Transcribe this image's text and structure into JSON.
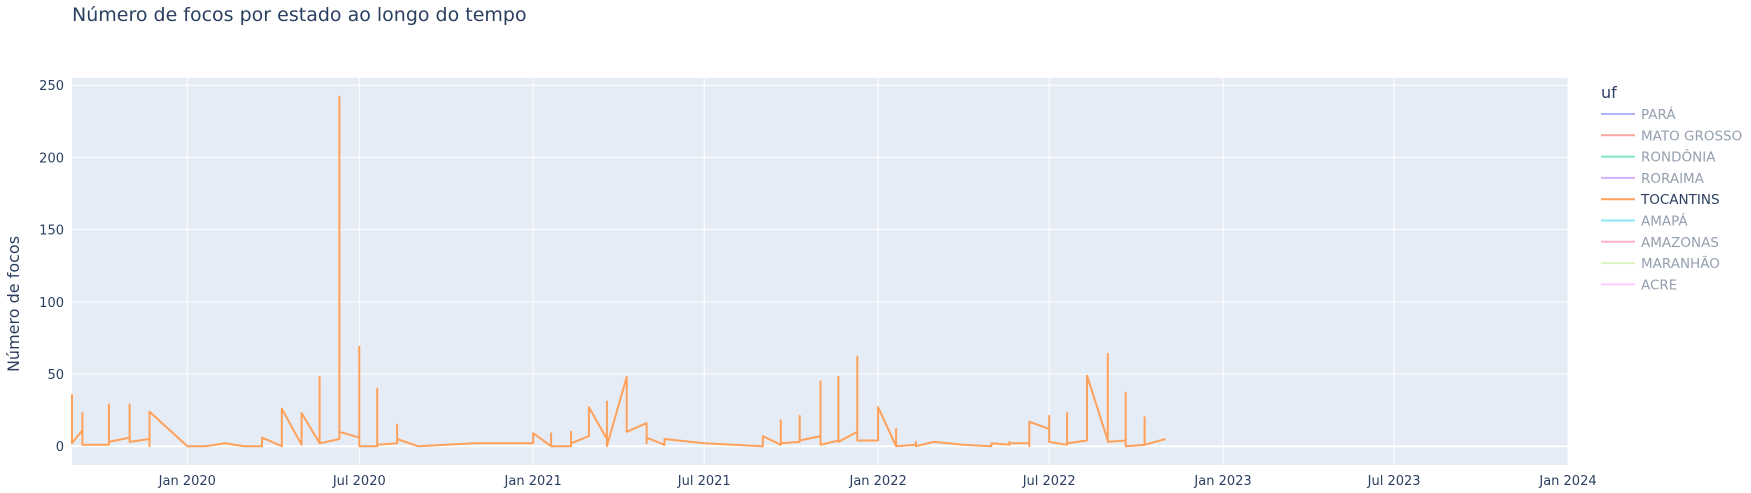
{
  "chart_data": {
    "type": "line",
    "title": "Número de focos por estado ao longo do tempo",
    "xlabel": "",
    "ylabel": "Número de focos",
    "x_axis_type": "date",
    "xlim": [
      "2019-09-01",
      "2024-01-01"
    ],
    "ylim": [
      -13,
      255
    ],
    "x_ticks": [
      {
        "date": "2020-01-01",
        "label": "Jan 2020"
      },
      {
        "date": "2020-07-01",
        "label": "Jul 2020"
      },
      {
        "date": "2021-01-01",
        "label": "Jan 2021"
      },
      {
        "date": "2021-07-01",
        "label": "Jul 2021"
      },
      {
        "date": "2022-01-01",
        "label": "Jan 2022"
      },
      {
        "date": "2022-07-01",
        "label": "Jul 2022"
      },
      {
        "date": "2023-01-01",
        "label": "Jan 2023"
      },
      {
        "date": "2023-07-01",
        "label": "Jul 2023"
      },
      {
        "date": "2024-01-01",
        "label": "Jan 2024"
      }
    ],
    "y_ticks": [
      0,
      50,
      100,
      150,
      200,
      250
    ],
    "grid": true,
    "plot_background": "#e5ecf6",
    "legend": {
      "title": "uf",
      "placement": "right",
      "items": [
        {
          "name": "PARÁ",
          "color": "#636efa",
          "visible": false
        },
        {
          "name": "MATO GROSSO",
          "color": "#ef553b",
          "visible": false
        },
        {
          "name": "RONDÔNIA",
          "color": "#00cc96",
          "visible": false
        },
        {
          "name": "RORAIMA",
          "color": "#ab63fa",
          "visible": false
        },
        {
          "name": "TOCANTINS",
          "color": "#ffa15a",
          "visible": true
        },
        {
          "name": "AMAPÁ",
          "color": "#19d3f3",
          "visible": false
        },
        {
          "name": "AMAZONAS",
          "color": "#ff6692",
          "visible": false
        },
        {
          "name": "MARANHÃO",
          "color": "#b6e880",
          "visible": false
        },
        {
          "name": "ACRE",
          "color": "#ff97ff",
          "visible": false
        }
      ]
    },
    "series": [
      {
        "name": "TOCANTINS",
        "color": "#ffa15a",
        "points": [
          [
            "2019-09-01",
            36
          ],
          [
            "2019-09-01",
            2
          ],
          [
            "2019-09-12",
            11
          ],
          [
            "2019-09-12",
            23
          ],
          [
            "2019-09-12",
            1
          ],
          [
            "2019-10-01",
            1
          ],
          [
            "2019-10-10",
            1
          ],
          [
            "2019-10-10",
            29
          ],
          [
            "2019-10-10",
            3
          ],
          [
            "2019-11-01",
            6
          ],
          [
            "2019-11-01",
            29
          ],
          [
            "2019-11-01",
            3
          ],
          [
            "2019-11-22",
            5
          ],
          [
            "2019-11-22",
            0
          ],
          [
            "2019-11-22",
            24
          ],
          [
            "2020-01-01",
            0
          ],
          [
            "2020-01-20",
            0
          ],
          [
            "2020-02-10",
            2
          ],
          [
            "2020-03-01",
            0
          ],
          [
            "2020-03-20",
            0
          ],
          [
            "2020-03-20",
            6
          ],
          [
            "2020-04-10",
            0
          ],
          [
            "2020-04-10",
            26
          ],
          [
            "2020-05-01",
            1
          ],
          [
            "2020-05-01",
            23
          ],
          [
            "2020-05-20",
            2
          ],
          [
            "2020-05-20",
            48
          ],
          [
            "2020-05-20",
            2
          ],
          [
            "2020-06-10",
            5
          ],
          [
            "2020-06-10",
            242
          ],
          [
            "2020-06-10",
            10
          ],
          [
            "2020-07-01",
            6
          ],
          [
            "2020-07-01",
            69
          ],
          [
            "2020-07-01",
            0
          ],
          [
            "2020-07-20",
            0
          ],
          [
            "2020-07-20",
            40
          ],
          [
            "2020-07-20",
            1
          ],
          [
            "2020-08-10",
            2
          ],
          [
            "2020-08-10",
            15
          ],
          [
            "2020-08-10",
            5
          ],
          [
            "2020-09-01",
            0
          ],
          [
            "2020-10-01",
            1
          ],
          [
            "2020-11-01",
            2
          ],
          [
            "2020-12-01",
            2
          ],
          [
            "2021-01-01",
            2
          ],
          [
            "2021-01-01",
            9
          ],
          [
            "2021-01-20",
            0
          ],
          [
            "2021-01-20",
            9
          ],
          [
            "2021-01-20",
            0
          ],
          [
            "2021-02-10",
            0
          ],
          [
            "2021-02-10",
            10
          ],
          [
            "2021-02-10",
            2
          ],
          [
            "2021-03-01",
            7
          ],
          [
            "2021-03-01",
            27
          ],
          [
            "2021-03-20",
            5
          ],
          [
            "2021-03-20",
            31
          ],
          [
            "2021-03-20",
            0
          ],
          [
            "2021-04-10",
            48
          ],
          [
            "2021-04-10",
            10
          ],
          [
            "2021-05-01",
            16
          ],
          [
            "2021-05-01",
            2
          ],
          [
            "2021-05-01",
            6
          ],
          [
            "2021-05-20",
            1
          ],
          [
            "2021-05-20",
            5
          ],
          [
            "2021-07-01",
            2
          ],
          [
            "2021-09-01",
            0
          ],
          [
            "2021-09-01",
            7
          ],
          [
            "2021-09-20",
            1
          ],
          [
            "2021-09-20",
            18
          ],
          [
            "2021-09-20",
            2
          ],
          [
            "2021-10-10",
            3
          ],
          [
            "2021-10-10",
            21
          ],
          [
            "2021-10-10",
            4
          ],
          [
            "2021-11-01",
            7
          ],
          [
            "2021-11-01",
            45
          ],
          [
            "2021-11-01",
            1
          ],
          [
            "2021-11-20",
            4
          ],
          [
            "2021-11-20",
            48
          ],
          [
            "2021-11-20",
            3
          ],
          [
            "2021-12-10",
            10
          ],
          [
            "2021-12-10",
            62
          ],
          [
            "2021-12-10",
            4
          ],
          [
            "2022-01-01",
            4
          ],
          [
            "2022-01-01",
            27
          ],
          [
            "2022-01-20",
            0
          ],
          [
            "2022-01-20",
            12
          ],
          [
            "2022-01-20",
            0
          ],
          [
            "2022-02-10",
            1
          ],
          [
            "2022-02-10",
            3
          ],
          [
            "2022-02-10",
            0
          ],
          [
            "2022-03-01",
            3
          ],
          [
            "2022-04-01",
            1
          ],
          [
            "2022-05-01",
            0
          ],
          [
            "2022-05-01",
            2
          ],
          [
            "2022-05-20",
            1
          ],
          [
            "2022-05-20",
            3
          ],
          [
            "2022-05-20",
            2
          ],
          [
            "2022-06-10",
            2
          ],
          [
            "2022-06-10",
            0
          ],
          [
            "2022-06-10",
            17
          ],
          [
            "2022-07-01",
            12
          ],
          [
            "2022-07-01",
            21
          ],
          [
            "2022-07-01",
            3
          ],
          [
            "2022-07-20",
            1
          ],
          [
            "2022-07-20",
            23
          ],
          [
            "2022-07-20",
            2
          ],
          [
            "2022-08-10",
            4
          ],
          [
            "2022-08-10",
            49
          ],
          [
            "2022-09-01",
            4
          ],
          [
            "2022-09-01",
            64
          ],
          [
            "2022-09-01",
            3
          ],
          [
            "2022-09-20",
            4
          ],
          [
            "2022-09-20",
            37
          ],
          [
            "2022-09-20",
            0
          ],
          [
            "2022-10-10",
            1
          ],
          [
            "2022-10-10",
            20
          ],
          [
            "2022-10-10",
            1
          ],
          [
            "2022-11-01",
            5
          ]
        ]
      }
    ]
  }
}
